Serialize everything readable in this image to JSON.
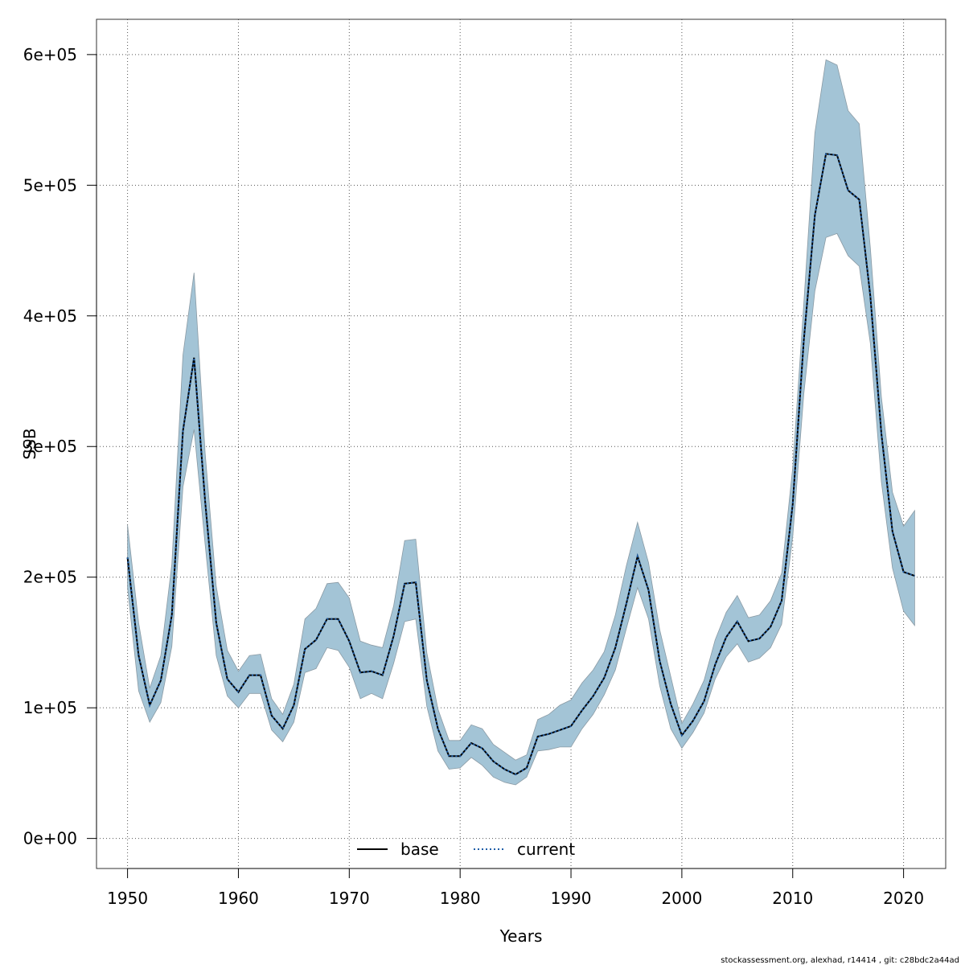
{
  "chart_data": {
    "type": "line",
    "xlabel": "Years",
    "ylabel": "SSB",
    "xlim": [
      1947.2,
      2023.8
    ],
    "ylim": [
      -23000,
      627000
    ],
    "xticks": [
      1950,
      1960,
      1970,
      1980,
      1990,
      2000,
      2010,
      2020
    ],
    "yticks": [
      0,
      100000,
      200000,
      300000,
      400000,
      500000,
      600000
    ],
    "ytick_labels": [
      "0e+00",
      "1e+05",
      "2e+05",
      "3e+05",
      "4e+05",
      "5e+05",
      "6e+05"
    ],
    "grid": true,
    "legend_position": "bottom",
    "x": [
      1950,
      1951,
      1952,
      1953,
      1954,
      1955,
      1956,
      1957,
      1958,
      1959,
      1960,
      1961,
      1962,
      1963,
      1964,
      1965,
      1966,
      1967,
      1968,
      1969,
      1970,
      1971,
      1972,
      1973,
      1974,
      1975,
      1976,
      1977,
      1978,
      1979,
      1980,
      1981,
      1982,
      1983,
      1984,
      1985,
      1986,
      1987,
      1988,
      1989,
      1990,
      1991,
      1992,
      1993,
      1994,
      1995,
      1996,
      1997,
      1998,
      1999,
      2000,
      2001,
      2002,
      2003,
      2004,
      2005,
      2006,
      2007,
      2008,
      2009,
      2010,
      2011,
      2012,
      2013,
      2014,
      2015,
      2016,
      2017,
      2018,
      2019,
      2020,
      2021
    ],
    "series": [
      {
        "name": "base",
        "line_style": "solid",
        "color": "#000000",
        "values": [
          215000,
          140000,
          102000,
          121000,
          171000,
          312000,
          368000,
          258000,
          165000,
          122000,
          112000,
          125000,
          125000,
          94000,
          84000,
          102000,
          145000,
          152000,
          168000,
          168000,
          151000,
          127000,
          128000,
          125000,
          155000,
          195000,
          196000,
          121000,
          84000,
          63000,
          63000,
          73000,
          69000,
          59000,
          53000,
          49000,
          54000,
          78000,
          80000,
          83000,
          86000,
          98000,
          109000,
          123000,
          146000,
          180000,
          216000,
          190000,
          136000,
          103000,
          79000,
          90000,
          105000,
          133000,
          154000,
          166000,
          151000,
          153000,
          162000,
          182000,
          256000,
          381000,
          477000,
          524000,
          523000,
          496000,
          489000,
          415000,
          310000,
          235000,
          204000,
          201000
        ]
      },
      {
        "name": "current",
        "line_style": "dotted",
        "color": "#1f5ea8",
        "values": [
          215000,
          140000,
          102000,
          121000,
          171000,
          312000,
          368000,
          258000,
          165000,
          122000,
          112000,
          125000,
          125000,
          94000,
          84000,
          102000,
          145000,
          152000,
          168000,
          168000,
          151000,
          127000,
          128000,
          125000,
          155000,
          195000,
          196000,
          121000,
          84000,
          63000,
          63000,
          73000,
          69000,
          59000,
          53000,
          49000,
          54000,
          78000,
          80000,
          83000,
          86000,
          98000,
          109000,
          123000,
          146000,
          180000,
          216000,
          190000,
          136000,
          103000,
          79000,
          90000,
          105000,
          133000,
          154000,
          166000,
          151000,
          153000,
          162000,
          182000,
          256000,
          381000,
          477000,
          524000,
          523000,
          496000,
          489000,
          415000,
          310000,
          235000,
          204000,
          201000
        ]
      }
    ],
    "band": {
      "color": "#a3c4d6",
      "upper": [
        240000,
        165000,
        115000,
        140000,
        210000,
        370000,
        433000,
        295000,
        193000,
        144000,
        128000,
        140000,
        141000,
        107000,
        95000,
        118000,
        168000,
        176000,
        195000,
        196000,
        184000,
        151000,
        148000,
        146000,
        178000,
        228000,
        229000,
        142000,
        99000,
        75000,
        75000,
        87000,
        84000,
        72000,
        66000,
        60000,
        64000,
        91000,
        95000,
        102000,
        106000,
        119000,
        129000,
        143000,
        171000,
        209000,
        242000,
        211000,
        160000,
        124000,
        88000,
        103000,
        121000,
        152000,
        173000,
        186000,
        169000,
        171000,
        182000,
        203000,
        284000,
        409000,
        540000,
        596000,
        592000,
        557000,
        547000,
        452000,
        338000,
        265000,
        239000,
        251000
      ],
      "lower": [
        192000,
        113000,
        89000,
        104000,
        147000,
        269000,
        313000,
        225000,
        140000,
        109000,
        100000,
        111000,
        111000,
        83000,
        74000,
        89000,
        127000,
        130000,
        146000,
        144000,
        131000,
        107000,
        111000,
        107000,
        134000,
        166000,
        168000,
        101000,
        67000,
        53000,
        54000,
        62000,
        56000,
        47000,
        43000,
        41000,
        47000,
        67000,
        68000,
        70000,
        70000,
        84000,
        95000,
        110000,
        129000,
        161000,
        192000,
        168000,
        117000,
        84000,
        69000,
        81000,
        96000,
        122000,
        139000,
        149000,
        135000,
        138000,
        146000,
        164000,
        231000,
        340000,
        419000,
        460000,
        463000,
        446000,
        438000,
        379000,
        273000,
        207000,
        174000,
        163000
      ]
    }
  },
  "legend": {
    "items": [
      "base",
      "current"
    ]
  },
  "footer": "stockassessment.org, alexhad, r14414 , git: c28bdc2a44ad"
}
